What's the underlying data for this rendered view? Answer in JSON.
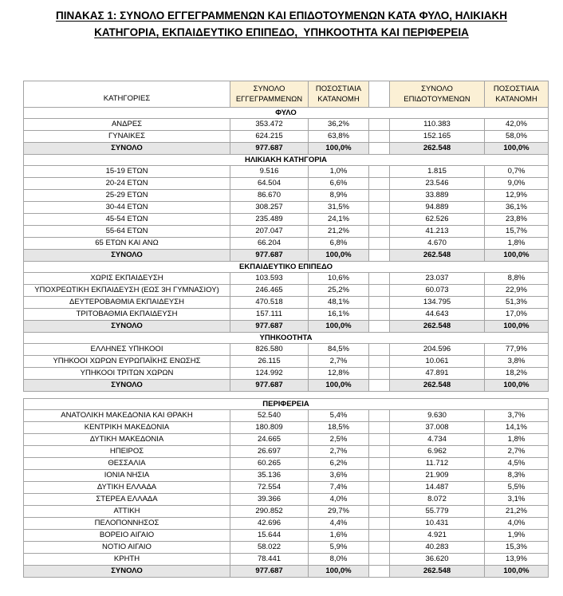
{
  "title": {
    "line1": "ΠΙΝΑΚΑΣ 1: ΣΥΝΟΛΟ ΕΓΓΕΓΡΑΜΜΕΝΩΝ ΚΑΙ ΕΠΙΔΟΤΟΥΜΕΝΩΝ ΚΑΤΑ ΦΥΛΟ, ΗΛΙΚΙΑΚΗ",
    "line2": "ΚΑΤΗΓΟΡΙΑ, ΕΚΠΑΙΔΕΥΤΙΚΟ ΕΠΙΠΕΔΟ,  ΥΠΗΚΟΟΤΗΤΑ ΚΑΙ ΠΕΡΙΦΕΡΕΙΑ"
  },
  "colors": {
    "header_bg": "#fbf0d5",
    "total_bg": "#e6e6e6",
    "border": "#a3a3a3"
  },
  "table": {
    "columns": {
      "categories": "ΚΑΤΗΓΟΡΙΕΣ",
      "registered_total": "ΣΥΝΟΛΟ\nΕΓΓΕΓΡΑΜΜΕΝΩΝ",
      "registered_pct": "ΠΟΣΟΣΤΙΑΙΑ\nΚΑΤΑΝΟΜΗ",
      "subsidized_total": "ΣΥΝΟΛΟ\nΕΠΙΔΟΤΟΥΜΕΝΩΝ",
      "subsidized_pct": "ΠΟΣΟΣΤΙΑΙΑ\nΚΑΤΑΝΟΜΗ"
    },
    "total_label": "ΣΥΝΟΛΟ",
    "sections": [
      {
        "header": "ΦΥΛΟ",
        "spacer_before": false,
        "rows": [
          {
            "label": "ΑΝΔΡΕΣ",
            "values": [
              "353.472",
              "36,2%",
              "110.383",
              "42,0%"
            ]
          },
          {
            "label": "ΓΥΝΑΙΚΕΣ",
            "values": [
              "624.215",
              "63,8%",
              "152.165",
              "58,0%"
            ]
          }
        ],
        "total": [
          "977.687",
          "100,0%",
          "262.548",
          "100,0%"
        ]
      },
      {
        "header": "ΗΛΙΚΙΑΚΗ ΚΑΤΗΓΟΡΙΑ",
        "spacer_before": false,
        "rows": [
          {
            "label": "15-19 ΕΤΩΝ",
            "values": [
              "9.516",
              "1,0%",
              "1.815",
              "0,7%"
            ]
          },
          {
            "label": "20-24 ΕΤΩΝ",
            "values": [
              "64.504",
              "6,6%",
              "23.546",
              "9,0%"
            ]
          },
          {
            "label": "25-29 ΕΤΩΝ",
            "values": [
              "86.670",
              "8,9%",
              "33.889",
              "12,9%"
            ]
          },
          {
            "label": "30-44 ΕΤΩΝ",
            "values": [
              "308.257",
              "31,5%",
              "94.889",
              "36,1%"
            ]
          },
          {
            "label": "45-54 ΕΤΩΝ",
            "values": [
              "235.489",
              "24,1%",
              "62.526",
              "23,8%"
            ]
          },
          {
            "label": "55-64 ΕΤΩΝ",
            "values": [
              "207.047",
              "21,2%",
              "41.213",
              "15,7%"
            ]
          },
          {
            "label": "65 ΕΤΩΝ ΚΑΙ ΑΝΩ",
            "values": [
              "66.204",
              "6,8%",
              "4.670",
              "1,8%"
            ]
          }
        ],
        "total": [
          "977.687",
          "100,0%",
          "262.548",
          "100,0%"
        ]
      },
      {
        "header": "ΕΚΠΑΙΔΕΥΤΙΚΟ ΕΠΙΠΕΔΟ",
        "spacer_before": false,
        "rows": [
          {
            "label": "ΧΩΡΙΣ ΕΚΠΑΙΔΕΥΣΗ",
            "values": [
              "103.593",
              "10,6%",
              "23.037",
              "8,8%"
            ]
          },
          {
            "label": "ΥΠΟΧΡΕΩΤΙΚΗ ΕΚΠΑΙΔΕΥΣΗ (ΕΩΣ 3Η ΓΥΜΝΑΣΙΟΥ)",
            "values": [
              "246.465",
              "25,2%",
              "60.073",
              "22,9%"
            ]
          },
          {
            "label": "ΔΕΥΤΕΡΟΒΑΘΜΙΑ ΕΚΠΑΙΔΕΥΣΗ",
            "values": [
              "470.518",
              "48,1%",
              "134.795",
              "51,3%"
            ]
          },
          {
            "label": "ΤΡΙΤΟΒΑΘΜΙΑ ΕΚΠΑΙΔΕΥΣΗ",
            "values": [
              "157.111",
              "16,1%",
              "44.643",
              "17,0%"
            ]
          }
        ],
        "total": [
          "977.687",
          "100,0%",
          "262.548",
          "100,0%"
        ]
      },
      {
        "header": "ΥΠΗΚΟΟΤΗΤΑ",
        "spacer_before": false,
        "rows": [
          {
            "label": "ΕΛΛΗΝΕΣ ΥΠΗΚΟΟΙ",
            "values": [
              "826.580",
              "84,5%",
              "204.596",
              "77,9%"
            ]
          },
          {
            "label": "ΥΠΗΚΟΟΙ ΧΩΡΩΝ ΕΥΡΩΠΑΪΚΗΣ ΕΝΩΣΗΣ",
            "values": [
              "26.115",
              "2,7%",
              "10.061",
              "3,8%"
            ]
          },
          {
            "label": "ΥΠΗΚΟΟΙ ΤΡΙΤΩΝ ΧΩΡΩΝ",
            "values": [
              "124.992",
              "12,8%",
              "47.891",
              "18,2%"
            ]
          }
        ],
        "total": [
          "977.687",
          "100,0%",
          "262.548",
          "100,0%"
        ]
      },
      {
        "header": "ΠΕΡΙΦΕΡΕΙΑ",
        "spacer_before": true,
        "rows": [
          {
            "label": "ΑΝΑΤΟΛΙΚΗ ΜΑΚΕΔΟΝΙΑ ΚΑΙ ΘΡΑΚΗ",
            "values": [
              "52.540",
              "5,4%",
              "9.630",
              "3,7%"
            ]
          },
          {
            "label": "ΚΕΝΤΡΙΚΗ ΜΑΚΕΔΟΝΙΑ",
            "values": [
              "180.809",
              "18,5%",
              "37.008",
              "14,1%"
            ]
          },
          {
            "label": "ΔΥΤΙΚΗ ΜΑΚΕΔΟΝΙΑ",
            "values": [
              "24.665",
              "2,5%",
              "4.734",
              "1,8%"
            ]
          },
          {
            "label": "ΗΠΕΙΡΟΣ",
            "values": [
              "26.697",
              "2,7%",
              "6.962",
              "2,7%"
            ]
          },
          {
            "label": "ΘΕΣΣΑΛΙΑ",
            "values": [
              "60.265",
              "6,2%",
              "11.712",
              "4,5%"
            ]
          },
          {
            "label": "ΙΟΝΙΑ ΝΗΣΙΑ",
            "values": [
              "35.136",
              "3,6%",
              "21.909",
              "8,3%"
            ]
          },
          {
            "label": "ΔΥΤΙΚΗ ΕΛΛΑΔΑ",
            "values": [
              "72.554",
              "7,4%",
              "14.487",
              "5,5%"
            ]
          },
          {
            "label": "ΣΤΕΡΕΑ ΕΛΛΑΔΑ",
            "values": [
              "39.366",
              "4,0%",
              "8.072",
              "3,1%"
            ]
          },
          {
            "label": "ΑΤΤΙΚΗ",
            "values": [
              "290.852",
              "29,7%",
              "55.779",
              "21,2%"
            ]
          },
          {
            "label": "ΠΕΛΟΠΟΝΝΗΣΟΣ",
            "values": [
              "42.696",
              "4,4%",
              "10.431",
              "4,0%"
            ]
          },
          {
            "label": "ΒΟΡΕΙΟ ΑΙΓΑΙΟ",
            "values": [
              "15.644",
              "1,6%",
              "4.921",
              "1,9%"
            ]
          },
          {
            "label": "ΝΟΤΙΟ ΑΙΓΑΙΟ",
            "values": [
              "58.022",
              "5,9%",
              "40.283",
              "15,3%"
            ]
          },
          {
            "label": "ΚΡΗΤΗ",
            "values": [
              "78.441",
              "8,0%",
              "36.620",
              "13,9%"
            ]
          }
        ],
        "total": [
          "977.687",
          "100,0%",
          "262.548",
          "100,0%"
        ]
      }
    ]
  }
}
